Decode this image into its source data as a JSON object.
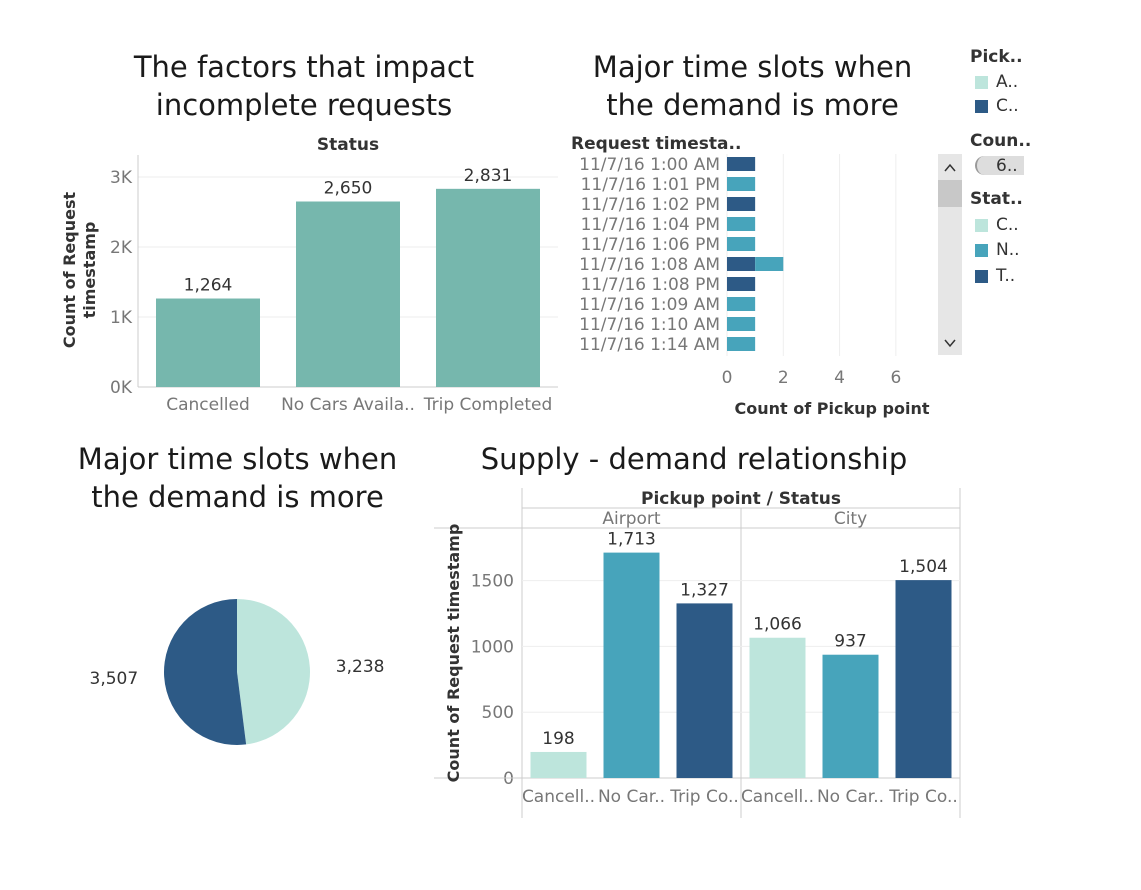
{
  "colors": {
    "light": "#bde5dc",
    "medium": "#47a4bb",
    "dark": "#2d5a86",
    "teal": "#76b7ad",
    "grid": "#eeeeee",
    "axis": "#cccccc",
    "scrollbar": "#e6e6e6"
  },
  "titles": {
    "incomplete": "The factors that impact incomplete requests",
    "timeslots": "Major time slots when the demand is more",
    "pie": "Major time slots when the demand is more",
    "supply": "Supply - demand relationship"
  },
  "legend": {
    "pickup": {
      "title": "Pick..",
      "items": [
        "A..",
        "C.."
      ]
    },
    "count": {
      "title": "Coun..",
      "value": "6.."
    },
    "status": {
      "title": "Stat..",
      "items": [
        "C..",
        "N..",
        "T.."
      ]
    }
  },
  "chart_data": [
    {
      "type": "bar",
      "title": "The factors that impact incomplete requests",
      "header": "Status",
      "categories": [
        "Cancelled",
        "No Cars Availa..",
        "Trip Completed"
      ],
      "values": [
        1264,
        2650,
        2831
      ],
      "value_labels": [
        "1,264",
        "2,650",
        "2,831"
      ],
      "ylabel": "Count of Request timestamp",
      "ylim": [
        0,
        3000
      ],
      "yticks": [
        0,
        1000,
        2000,
        3000
      ],
      "ytick_labels": [
        "0K",
        "1K",
        "2K",
        "3K"
      ],
      "grid": true
    },
    {
      "type": "bar",
      "orientation": "horizontal",
      "title": "Major time slots when the demand is more",
      "row_header": "Request timesta..",
      "categories": [
        "11/7/16 1:00 AM",
        "11/7/16 1:01 PM",
        "11/7/16 1:02 PM",
        "11/7/16 1:04 PM",
        "11/7/16 1:06 PM",
        "11/7/16 1:08 AM",
        "11/7/16 1:08 PM",
        "11/7/16 1:09 AM",
        "11/7/16 1:10 AM",
        "11/7/16 1:14 AM"
      ],
      "series": [
        {
          "name": "T..",
          "values": [
            1,
            0,
            1,
            0,
            0,
            1,
            1,
            0,
            0,
            0
          ]
        },
        {
          "name": "N..",
          "values": [
            0,
            1,
            0,
            1,
            1,
            1,
            0,
            1,
            1,
            1
          ]
        }
      ],
      "xlabel": "Count of Pickup point",
      "xlim": [
        0,
        7
      ],
      "xticks": [
        0,
        2,
        4,
        6
      ],
      "grid": true
    },
    {
      "type": "pie",
      "title": "Major time slots when the demand is more",
      "values": [
        3238,
        3507
      ],
      "value_labels": [
        "3,238",
        "3,507"
      ]
    },
    {
      "type": "bar",
      "title": "Supply - demand relationship",
      "header": "Pickup point / Status",
      "groups": [
        "Airport",
        "City"
      ],
      "categories": [
        "Cancell..",
        "No Car..",
        "Trip Co.."
      ],
      "series": [
        {
          "group": "Airport",
          "values": [
            198,
            1713,
            1327
          ],
          "value_labels": [
            "198",
            "1,713",
            "1,327"
          ]
        },
        {
          "group": "City",
          "values": [
            1066,
            937,
            1504
          ],
          "value_labels": [
            "1,066",
            "937",
            "1,504"
          ]
        }
      ],
      "ylabel": "Count of Request timestamp",
      "ylim": [
        0,
        1900
      ],
      "yticks": [
        0,
        500,
        1000,
        1500
      ],
      "grid": true
    }
  ]
}
